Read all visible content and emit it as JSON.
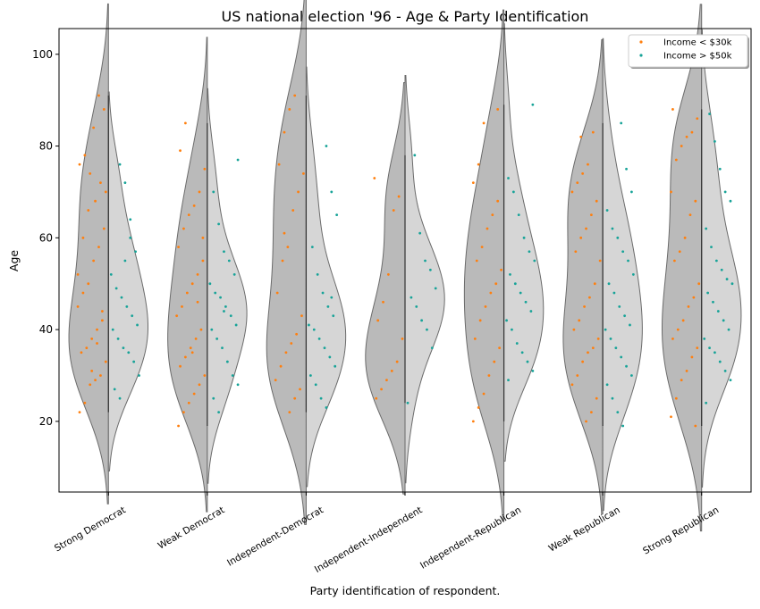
{
  "chart_data": {
    "type": "split-violin",
    "title": "US national election '96 - Age & Party Identification",
    "x_label": "Party identification of respondent.",
    "y_label": "Age",
    "categories": [
      "Strong Democrat",
      "Weak Democrat",
      "Independent-Democrat",
      "Independent-Independent",
      "Independent-Republican",
      "Weak Republican",
      "Strong Republican"
    ],
    "ylim": [
      4.6,
      105.6
    ],
    "yticks": [
      20,
      40,
      60,
      80,
      100
    ],
    "legend_position": "upper right",
    "series": [
      {
        "name": "Income < $30k",
        "color": "#ff7f0e",
        "values": [
          [
            70,
            72,
            68,
            74,
            78,
            76,
            62,
            58,
            55,
            50,
            48,
            45,
            42,
            40,
            38,
            36,
            35,
            33,
            30,
            29,
            28,
            24,
            22,
            88,
            91,
            84,
            66,
            60,
            52,
            44,
            37,
            31
          ],
          [
            85,
            79,
            75,
            70,
            67,
            65,
            62,
            58,
            55,
            52,
            50,
            48,
            45,
            43,
            40,
            38,
            36,
            34,
            32,
            30,
            28,
            26,
            24,
            22,
            19,
            60,
            46,
            35
          ],
          [
            91,
            88,
            83,
            76,
            74,
            70,
            66,
            58,
            55,
            48,
            43,
            39,
            37,
            35,
            32,
            29,
            27,
            25,
            22,
            61
          ],
          [
            73,
            69,
            66,
            52,
            46,
            42,
            38,
            33,
            31,
            29,
            27,
            25
          ],
          [
            85,
            76,
            72,
            68,
            65,
            62,
            58,
            55,
            53,
            50,
            48,
            45,
            42,
            38,
            36,
            33,
            30,
            26,
            23,
            20,
            88
          ],
          [
            83,
            76,
            74,
            72,
            70,
            68,
            65,
            62,
            60,
            57,
            55,
            50,
            47,
            45,
            42,
            40,
            38,
            36,
            35,
            33,
            30,
            28,
            25,
            22,
            20,
            82
          ],
          [
            88,
            86,
            83,
            82,
            80,
            77,
            70,
            68,
            65,
            60,
            57,
            55,
            50,
            47,
            45,
            42,
            40,
            38,
            36,
            34,
            31,
            29,
            25,
            21,
            19
          ]
        ]
      },
      {
        "name": "Income > $50k",
        "color": "#17a398",
        "values": [
          [
            76,
            72,
            64,
            57,
            52,
            49,
            47,
            45,
            43,
            41,
            40,
            38,
            36,
            35,
            33,
            30,
            27,
            25,
            55,
            60
          ],
          [
            77,
            70,
            63,
            57,
            55,
            52,
            50,
            48,
            47,
            45,
            43,
            41,
            40,
            38,
            36,
            33,
            30,
            28,
            25,
            22,
            44
          ],
          [
            80,
            70,
            65,
            58,
            52,
            48,
            45,
            43,
            41,
            40,
            38,
            36,
            34,
            32,
            30,
            28,
            25,
            23,
            47
          ],
          [
            78,
            61,
            55,
            53,
            49,
            47,
            45,
            42,
            40,
            36,
            24
          ],
          [
            89,
            73,
            70,
            65,
            60,
            57,
            55,
            52,
            50,
            48,
            46,
            44,
            42,
            40,
            37,
            35,
            33,
            31,
            29
          ],
          [
            85,
            75,
            70,
            66,
            62,
            60,
            57,
            55,
            52,
            50,
            48,
            45,
            43,
            41,
            40,
            38,
            36,
            34,
            32,
            30,
            28,
            25,
            22,
            19
          ],
          [
            87,
            81,
            75,
            70,
            68,
            62,
            58,
            55,
            53,
            51,
            50,
            48,
            46,
            44,
            42,
            40,
            38,
            36,
            35,
            33,
            31,
            29,
            24
          ]
        ]
      }
    ]
  }
}
